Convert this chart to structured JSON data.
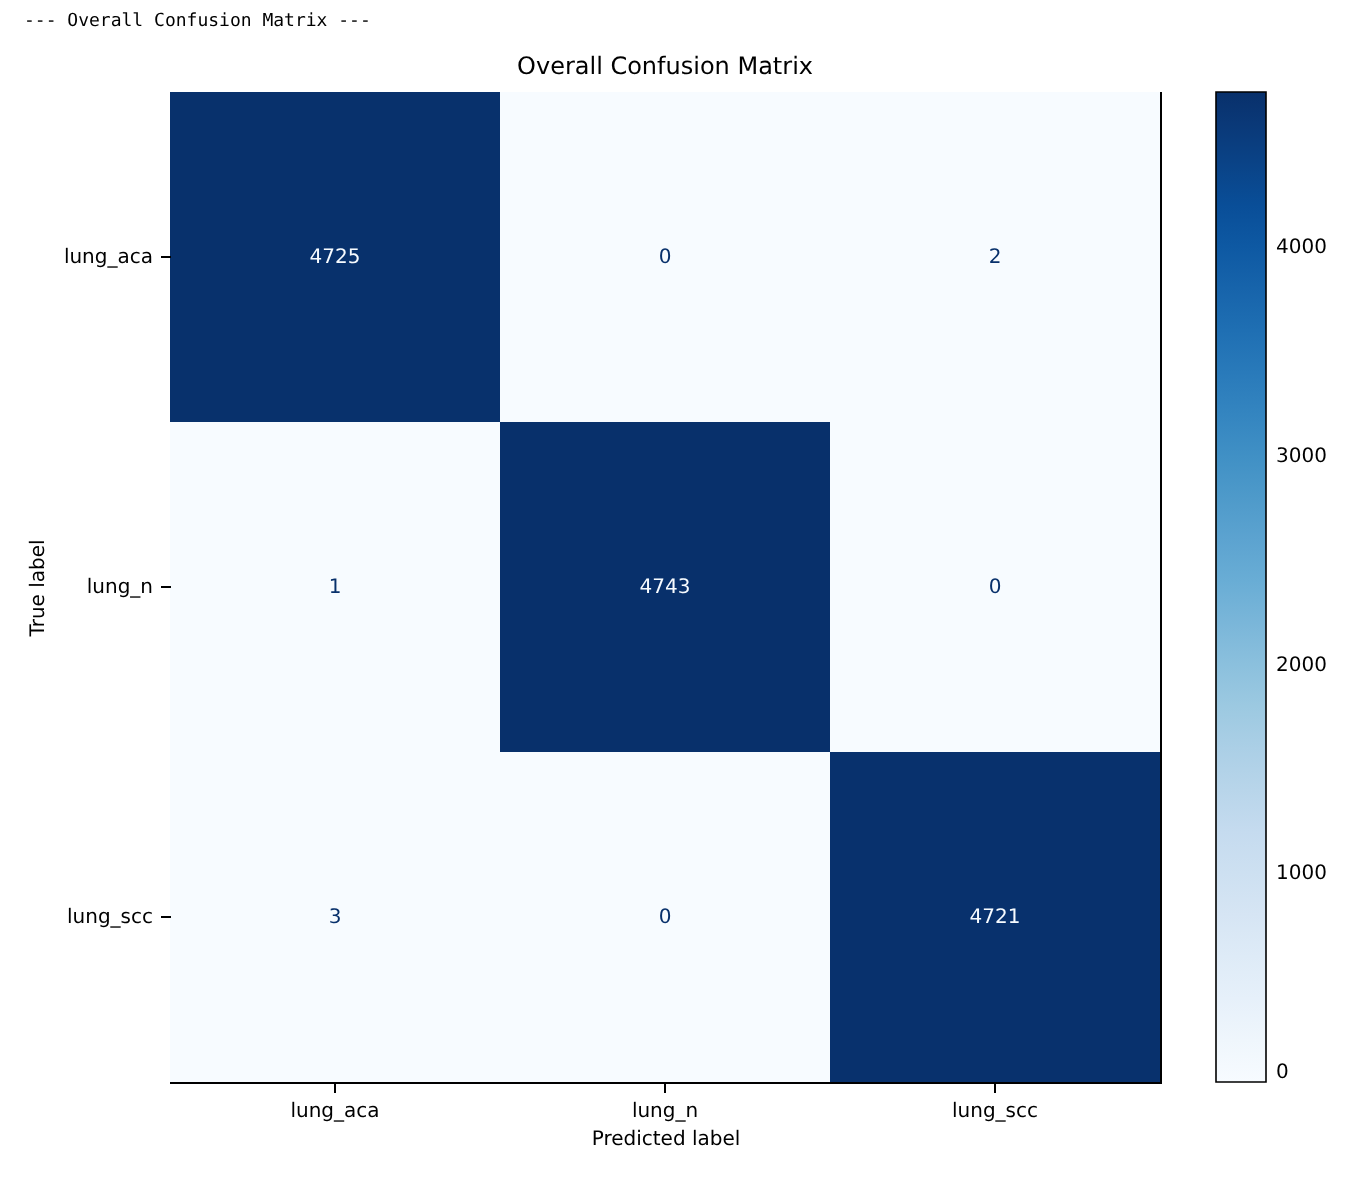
{
  "chart_data": {
    "type": "heatmap",
    "title": "Overall Confusion Matrix",
    "xlabel": "Predicted label",
    "ylabel": "True label",
    "annotations": [
      "--- Overall Confusion Matrix ---"
    ],
    "categories": [
      "lung_aca",
      "lung_n",
      "lung_scc"
    ],
    "y_categories": [
      "lung_aca",
      "lung_n",
      "lung_scc"
    ],
    "cells": [
      [
        4725,
        0,
        2
      ],
      [
        1,
        4743,
        0
      ],
      [
        3,
        0,
        4721
      ]
    ],
    "data_labels": true,
    "clim": [
      0,
      4743
    ],
    "cticks": [
      0,
      1000,
      2000,
      3000,
      4000
    ]
  }
}
